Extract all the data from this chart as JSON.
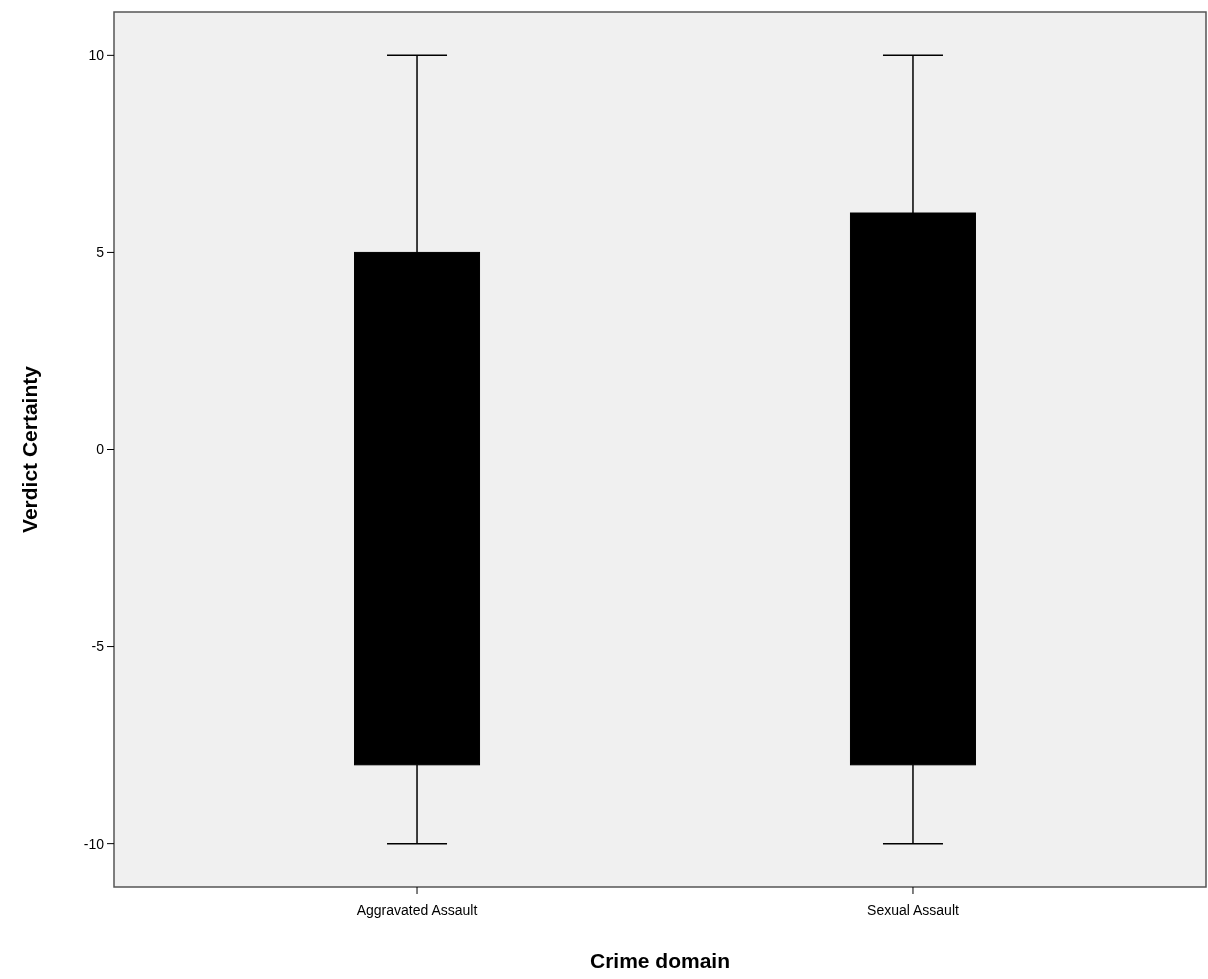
{
  "chart_data": {
    "type": "box",
    "xlabel": "Crime domain",
    "ylabel": "Verdict Certainty",
    "categories": [
      "Aggravated Assault",
      "Sexual Assault"
    ],
    "series": [
      {
        "color": "#000000",
        "boxes": [
          {
            "low": -10,
            "q1": -8,
            "median": null,
            "q3": 5,
            "high": 10
          },
          {
            "low": -10,
            "q1": -8,
            "median": null,
            "q3": 6,
            "high": 10
          }
        ]
      }
    ],
    "ylim": [
      -11.1,
      11.1
    ],
    "yticks": [
      -10,
      -5,
      0,
      5,
      10
    ],
    "grid": false
  }
}
